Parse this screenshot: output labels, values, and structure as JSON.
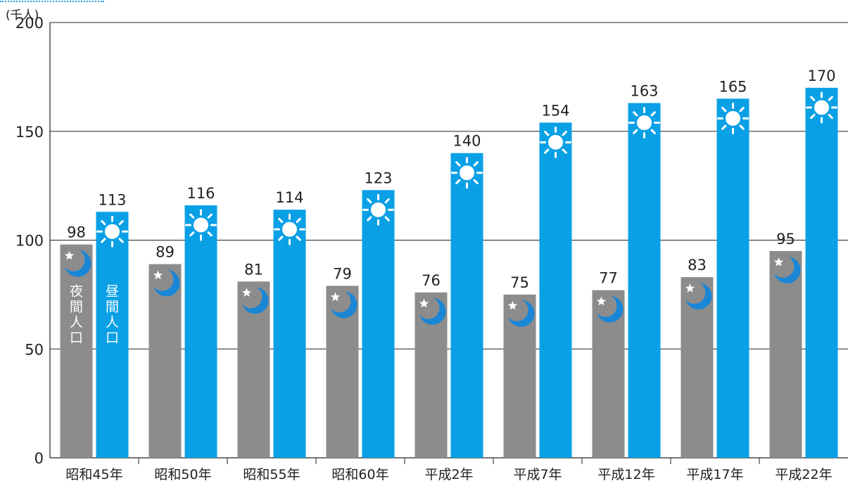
{
  "chart_data": {
    "type": "bar",
    "unit_label": "(千人)",
    "categories": [
      "昭和45年",
      "昭和50年",
      "昭和55年",
      "昭和60年",
      "平成2年",
      "平成7年",
      "平成12年",
      "平成17年",
      "平成22年"
    ],
    "series": [
      {
        "name": "夜間人口",
        "color": "#8c8c8c",
        "icon": "moon-star-icon",
        "values": [
          98,
          89,
          81,
          79,
          76,
          75,
          77,
          83,
          95
        ]
      },
      {
        "name": "昼間人口",
        "color": "#0aa0e6",
        "icon": "sun-icon",
        "values": [
          113,
          116,
          114,
          123,
          140,
          154,
          163,
          165,
          170
        ]
      }
    ],
    "ylim": [
      0,
      200
    ],
    "yticks": [
      0,
      50,
      100,
      150,
      200
    ],
    "grid": true,
    "data_labels": true,
    "legend": "vertical text inside first bar pair"
  }
}
